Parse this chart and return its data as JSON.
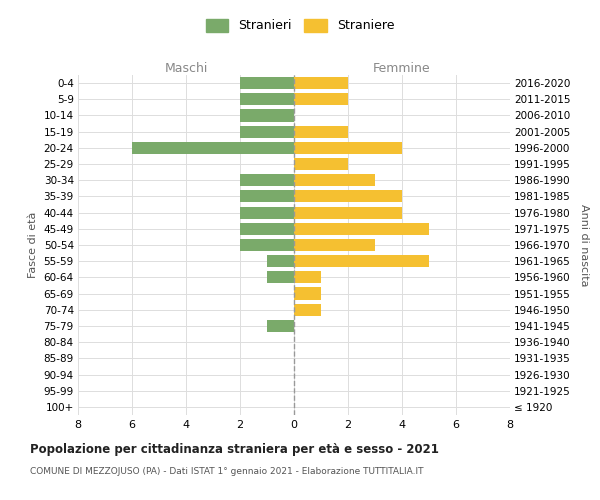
{
  "age_groups": [
    "100+",
    "95-99",
    "90-94",
    "85-89",
    "80-84",
    "75-79",
    "70-74",
    "65-69",
    "60-64",
    "55-59",
    "50-54",
    "45-49",
    "40-44",
    "35-39",
    "30-34",
    "25-29",
    "20-24",
    "15-19",
    "10-14",
    "5-9",
    "0-4"
  ],
  "birth_years": [
    "≤ 1920",
    "1921-1925",
    "1926-1930",
    "1931-1935",
    "1936-1940",
    "1941-1945",
    "1946-1950",
    "1951-1955",
    "1956-1960",
    "1961-1965",
    "1966-1970",
    "1971-1975",
    "1976-1980",
    "1981-1985",
    "1986-1990",
    "1991-1995",
    "1996-2000",
    "2001-2005",
    "2006-2010",
    "2011-2015",
    "2016-2020"
  ],
  "males": [
    0,
    0,
    0,
    0,
    0,
    1,
    0,
    0,
    1,
    1,
    2,
    2,
    2,
    2,
    2,
    0,
    6,
    2,
    2,
    2,
    2
  ],
  "females": [
    0,
    0,
    0,
    0,
    0,
    0,
    1,
    1,
    1,
    5,
    3,
    5,
    4,
    4,
    3,
    2,
    4,
    2,
    0,
    2,
    2
  ],
  "male_color": "#7aaa6a",
  "female_color": "#f5c031",
  "male_label": "Stranieri",
  "female_label": "Straniere",
  "title": "Popolazione per cittadinanza straniera per età e sesso - 2021",
  "subtitle": "COMUNE DI MEZZOJUSO (PA) - Dati ISTAT 1° gennaio 2021 - Elaborazione TUTTITALIA.IT",
  "ylabel_left": "Fasce di età",
  "ylabel_right": "Anni di nascita",
  "xlabel_left": "Maschi",
  "xlabel_right": "Femmine",
  "xlim": 8,
  "bg_color": "#ffffff",
  "grid_color": "#dddddd"
}
